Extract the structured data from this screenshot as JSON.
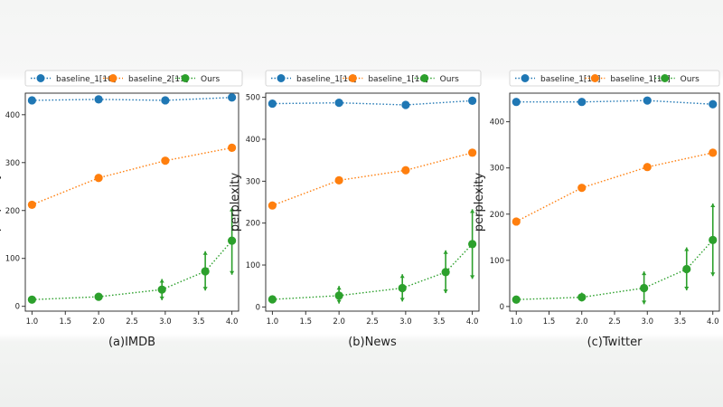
{
  "chart_data": [
    {
      "type": "line",
      "title": "(a)IMDB",
      "xlabel": "(a)IMDB",
      "ylabel": "perplexity",
      "xlim": [
        0.9,
        4.1
      ],
      "ylim": [
        -10,
        445
      ],
      "xticks": [
        1.0,
        1.5,
        2.0,
        2.5,
        3.0,
        3.5,
        4.0
      ],
      "xtick_labels": [
        "1.0",
        "1.5",
        "2.0",
        "2.5",
        "3.0",
        "3.5",
        "4.0"
      ],
      "yticks": [
        0,
        100,
        200,
        300,
        400
      ],
      "ytick_labels": [
        "0",
        "100",
        "200",
        "300",
        "400"
      ],
      "legend": {
        "position": "top",
        "entries": [
          "baseline_1[10]",
          "baseline_2[11]",
          "Ours"
        ]
      },
      "series": [
        {
          "name": "baseline_1[10]",
          "color": "#1f77b4",
          "x": [
            1.0,
            2.0,
            3.0,
            4.0
          ],
          "values": [
            430,
            432,
            430,
            436
          ]
        },
        {
          "name": "baseline_2[11]",
          "color": "#ff7f0e",
          "x": [
            1.0,
            2.0,
            3.0,
            4.0
          ],
          "values": [
            212,
            268,
            304,
            331
          ]
        },
        {
          "name": "Ours",
          "color": "#2ca02c",
          "x": [
            1.0,
            2.0,
            2.95,
            3.6,
            4.0
          ],
          "values": [
            14,
            20,
            35,
            73,
            137
          ],
          "err_low": [
            14,
            14,
            13,
            33,
            66
          ],
          "err_high": [
            14,
            25,
            57,
            115,
            206
          ]
        }
      ]
    },
    {
      "type": "line",
      "title": "(b)News",
      "xlabel": "(b)News",
      "ylabel": "perplexity",
      "xlim": [
        0.9,
        4.1
      ],
      "ylim": [
        -10,
        510
      ],
      "xticks": [
        1.0,
        1.5,
        2.0,
        2.5,
        3.0,
        3.5,
        4.0
      ],
      "xtick_labels": [
        "1.0",
        "1.5",
        "2.0",
        "2.5",
        "3.0",
        "3.5",
        "4.0"
      ],
      "yticks": [
        0,
        100,
        200,
        300,
        400,
        500
      ],
      "ytick_labels": [
        "0",
        "100",
        "200",
        "300",
        "400",
        "500"
      ],
      "legend": {
        "position": "top",
        "entries": [
          "baseline_1[10]",
          "baseline_1[10]",
          "Ours"
        ]
      },
      "series": [
        {
          "name": "baseline_1[10]",
          "color": "#1f77b4",
          "x": [
            1.0,
            2.0,
            3.0,
            4.0
          ],
          "values": [
            485,
            487,
            482,
            492
          ]
        },
        {
          "name": "baseline_1[10]",
          "color": "#ff7f0e",
          "x": [
            1.0,
            2.0,
            3.0,
            4.0
          ],
          "values": [
            242,
            302,
            326,
            368
          ]
        },
        {
          "name": "Ours",
          "color": "#2ca02c",
          "x": [
            1.0,
            2.0,
            2.95,
            3.6,
            4.0
          ],
          "values": [
            18,
            27,
            45,
            83,
            150
          ],
          "err_low": [
            18,
            8,
            13,
            33,
            67
          ],
          "err_high": [
            18,
            50,
            78,
            135,
            233
          ]
        }
      ]
    },
    {
      "type": "line",
      "title": "(c)Twitter",
      "xlabel": "(c)Twitter",
      "ylabel": "perplexity",
      "xlim": [
        0.9,
        4.1
      ],
      "ylim": [
        -10,
        462
      ],
      "xticks": [
        1.0,
        1.5,
        2.0,
        2.5,
        3.0,
        3.5,
        4.0
      ],
      "xtick_labels": [
        "1.0",
        "1.5",
        "2.0",
        "2.5",
        "3.0",
        "3.5",
        "4.0"
      ],
      "yticks": [
        0,
        100,
        200,
        300,
        400
      ],
      "ytick_labels": [
        "0",
        "100",
        "200",
        "300",
        "400"
      ],
      "legend": {
        "position": "top",
        "entries": [
          "baseline_1[10]",
          "baseline_1[10]",
          "Ours"
        ]
      },
      "series": [
        {
          "name": "baseline_1[10]",
          "color": "#1f77b4",
          "x": [
            1.0,
            2.0,
            3.0,
            4.0
          ],
          "values": [
            443,
            443,
            446,
            438
          ]
        },
        {
          "name": "baseline_1[10]",
          "color": "#ff7f0e",
          "x": [
            1.0,
            2.0,
            3.0,
            4.0
          ],
          "values": [
            184,
            257,
            302,
            333
          ]
        },
        {
          "name": "Ours",
          "color": "#2ca02c",
          "x": [
            1.0,
            2.0,
            2.95,
            3.6,
            4.0
          ],
          "values": [
            15,
            20,
            40,
            81,
            144
          ],
          "err_low": [
            15,
            11,
            5,
            35,
            66
          ],
          "err_high": [
            15,
            30,
            76,
            128,
            223
          ]
        }
      ]
    }
  ]
}
